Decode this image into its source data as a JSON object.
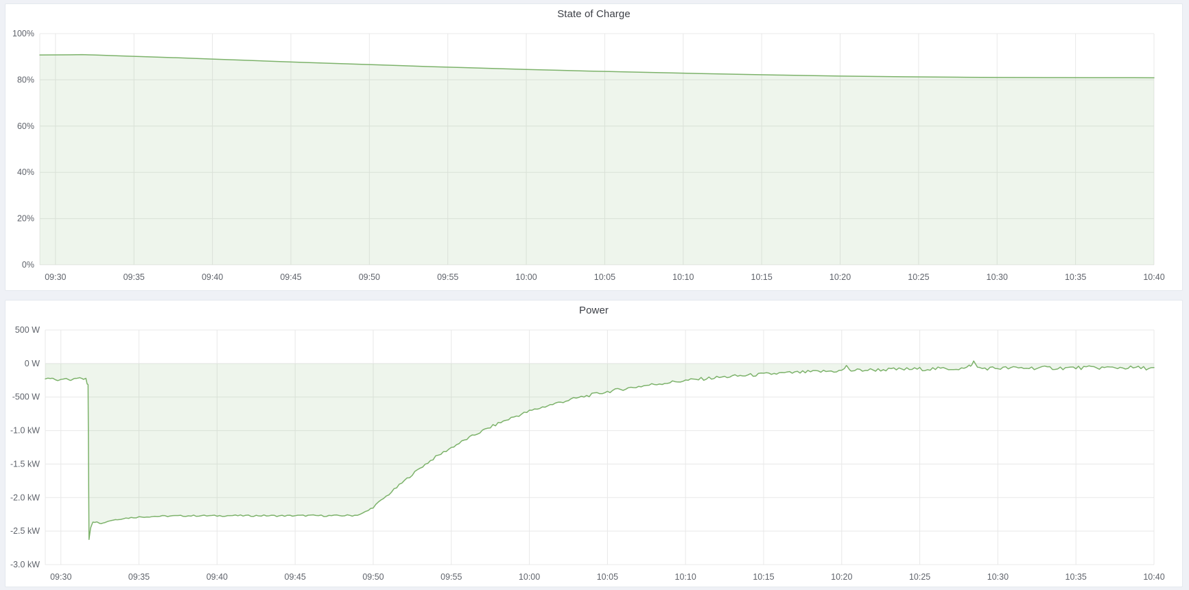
{
  "accent_color": "#7cb26a",
  "fill_color_rgba": "rgba(124,178,106,0.13)",
  "grid_color": "#e8e8e8",
  "chart_data": [
    {
      "type": "area",
      "title": "State of Charge",
      "unit": "%",
      "x_range_minutes": [
        -1,
        70
      ],
      "x_time_span": [
        "09:29",
        "10:40"
      ],
      "xticks": [
        {
          "minute": 0,
          "label": "09:30"
        },
        {
          "minute": 5,
          "label": "09:35"
        },
        {
          "minute": 10,
          "label": "09:40"
        },
        {
          "minute": 15,
          "label": "09:45"
        },
        {
          "minute": 20,
          "label": "09:50"
        },
        {
          "minute": 25,
          "label": "09:55"
        },
        {
          "minute": 30,
          "label": "10:00"
        },
        {
          "minute": 35,
          "label": "10:05"
        },
        {
          "minute": 40,
          "label": "10:10"
        },
        {
          "minute": 45,
          "label": "10:15"
        },
        {
          "minute": 50,
          "label": "10:20"
        },
        {
          "minute": 55,
          "label": "10:25"
        },
        {
          "minute": 60,
          "label": "10:30"
        },
        {
          "minute": 65,
          "label": "10:35"
        },
        {
          "minute": 70,
          "label": "10:40"
        }
      ],
      "yticks": [
        {
          "value": 100,
          "label": "100%"
        },
        {
          "value": 80,
          "label": "80%"
        },
        {
          "value": 60,
          "label": "60%"
        },
        {
          "value": 40,
          "label": "40%"
        },
        {
          "value": 20,
          "label": "20%"
        },
        {
          "value": 0,
          "label": "0%"
        }
      ],
      "ylim": [
        0,
        100
      ],
      "grid": true,
      "legend": "none",
      "series": [
        {
          "name": "State of Charge",
          "color": "#7cb26a",
          "fill_opacity": 0.13,
          "fill_to_zero": true,
          "points_t_min_vs_percent": [
            [
              -1,
              90.75
            ],
            [
              0,
              90.8
            ],
            [
              1,
              90.85
            ],
            [
              1.7,
              90.9
            ],
            [
              2.5,
              90.75
            ],
            [
              4,
              90.4
            ],
            [
              6,
              89.95
            ],
            [
              8,
              89.5
            ],
            [
              10,
              89.0
            ],
            [
              12,
              88.5
            ],
            [
              14,
              88.0
            ],
            [
              16,
              87.5
            ],
            [
              18,
              87.05
            ],
            [
              20,
              86.6
            ],
            [
              22,
              86.15
            ],
            [
              24,
              85.7
            ],
            [
              26,
              85.3
            ],
            [
              28,
              84.9
            ],
            [
              30,
              84.5
            ],
            [
              32,
              84.15
            ],
            [
              34,
              83.8
            ],
            [
              36,
              83.5
            ],
            [
              38,
              83.2
            ],
            [
              40,
              82.9
            ],
            [
              42,
              82.6
            ],
            [
              44,
              82.35
            ],
            [
              46,
              82.1
            ],
            [
              48,
              81.85
            ],
            [
              50,
              81.65
            ],
            [
              52,
              81.5
            ],
            [
              54,
              81.35
            ],
            [
              56,
              81.22
            ],
            [
              58,
              81.12
            ],
            [
              60,
              81.05
            ],
            [
              62,
              81.0
            ],
            [
              64,
              80.97
            ],
            [
              66,
              80.95
            ],
            [
              68,
              80.93
            ],
            [
              70,
              80.9
            ]
          ]
        }
      ]
    },
    {
      "type": "area",
      "title": "Power",
      "unit": "W",
      "x_range_minutes": [
        -1,
        70
      ],
      "x_time_span": [
        "09:29",
        "10:40"
      ],
      "xticks": [
        {
          "minute": 0,
          "label": "09:30"
        },
        {
          "minute": 5,
          "label": "09:35"
        },
        {
          "minute": 10,
          "label": "09:40"
        },
        {
          "minute": 15,
          "label": "09:45"
        },
        {
          "minute": 20,
          "label": "09:50"
        },
        {
          "minute": 25,
          "label": "09:55"
        },
        {
          "minute": 30,
          "label": "10:00"
        },
        {
          "minute": 35,
          "label": "10:05"
        },
        {
          "minute": 40,
          "label": "10:10"
        },
        {
          "minute": 45,
          "label": "10:15"
        },
        {
          "minute": 50,
          "label": "10:20"
        },
        {
          "minute": 55,
          "label": "10:25"
        },
        {
          "minute": 60,
          "label": "10:30"
        },
        {
          "minute": 65,
          "label": "10:35"
        },
        {
          "minute": 70,
          "label": "10:40"
        }
      ],
      "yticks": [
        {
          "value": 500,
          "label": "500 W"
        },
        {
          "value": 0,
          "label": "0 W"
        },
        {
          "value": -500,
          "label": "-500 W"
        },
        {
          "value": -1000,
          "label": "-1.0 kW"
        },
        {
          "value": -1500,
          "label": "-1.5 kW"
        },
        {
          "value": -2000,
          "label": "-2.0 kW"
        },
        {
          "value": -2500,
          "label": "-2.5 kW"
        },
        {
          "value": -3000,
          "label": "-3.0 kW"
        }
      ],
      "ylim": [
        -3000,
        500
      ],
      "grid": true,
      "legend": "none",
      "series": [
        {
          "name": "Power",
          "color": "#7cb26a",
          "fill_opacity": 0.13,
          "fill_to_zero": true,
          "points_t_min_vs_watts": [
            [
              -1,
              -235
            ],
            [
              -0.6,
              -215
            ],
            [
              -0.2,
              -245
            ],
            [
              0.2,
              -220
            ],
            [
              0.6,
              -250
            ],
            [
              0.9,
              -230
            ],
            [
              1.2,
              -205
            ],
            [
              1.45,
              -230
            ],
            [
              1.6,
              -215
            ],
            [
              1.68,
              -300
            ],
            [
              1.74,
              -310
            ],
            [
              1.8,
              -2620
            ],
            [
              1.9,
              -2450
            ],
            [
              2.05,
              -2370
            ],
            [
              2.3,
              -2355
            ],
            [
              2.6,
              -2390
            ],
            [
              2.9,
              -2360
            ],
            [
              3.2,
              -2340
            ],
            [
              3.6,
              -2325
            ],
            [
              4,
              -2310
            ],
            [
              4.5,
              -2300
            ],
            [
              5,
              -2290
            ],
            [
              6,
              -2280
            ],
            [
              7,
              -2275
            ],
            [
              8,
              -2272
            ],
            [
              9,
              -2270
            ],
            [
              10,
              -2272
            ],
            [
              11,
              -2268
            ],
            [
              12,
              -2271
            ],
            [
              13,
              -2269
            ],
            [
              14,
              -2272
            ],
            [
              15,
              -2270
            ],
            [
              16,
              -2268
            ],
            [
              17,
              -2271
            ],
            [
              18,
              -2269
            ],
            [
              18.8,
              -2265
            ],
            [
              19.3,
              -2240
            ],
            [
              19.7,
              -2190
            ],
            [
              20,
              -2140
            ],
            [
              21,
              -1950
            ],
            [
              22,
              -1750
            ],
            [
              23,
              -1560
            ],
            [
              24,
              -1395
            ],
            [
              25,
              -1255
            ],
            [
              26,
              -1125
            ],
            [
              27,
              -1005
            ],
            [
              28,
              -895
            ],
            [
              29,
              -798
            ],
            [
              30,
              -712
            ],
            [
              31,
              -640
            ],
            [
              32,
              -576
            ],
            [
              33,
              -518
            ],
            [
              34,
              -466
            ],
            [
              35,
              -420
            ],
            [
              36,
              -379
            ],
            [
              37,
              -343
            ],
            [
              38,
              -310
            ],
            [
              39,
              -281
            ],
            [
              40,
              -255
            ],
            [
              41,
              -231
            ],
            [
              42,
              -210
            ],
            [
              43,
              -192
            ],
            [
              44,
              -176
            ],
            [
              45,
              -161
            ],
            [
              46,
              -148
            ],
            [
              47,
              -137
            ],
            [
              48,
              -126
            ],
            [
              49,
              -117
            ],
            [
              50,
              -109
            ],
            [
              50.3,
              -45
            ],
            [
              50.6,
              -105
            ],
            [
              51,
              -101
            ],
            [
              52,
              -95
            ],
            [
              53,
              -90
            ],
            [
              54,
              -86
            ],
            [
              55,
              -82
            ],
            [
              56,
              -79
            ],
            [
              57,
              -76
            ],
            [
              58,
              -73
            ],
            [
              58.25,
              -20
            ],
            [
              58.45,
              25
            ],
            [
              58.7,
              -60
            ],
            [
              59,
              -72
            ],
            [
              60,
              -70
            ],
            [
              61,
              -68
            ],
            [
              62,
              -66
            ],
            [
              63,
              -65
            ],
            [
              64,
              -67
            ],
            [
              65,
              -64
            ],
            [
              66,
              -62
            ],
            [
              67,
              -63
            ],
            [
              68,
              -61
            ],
            [
              69,
              -65
            ],
            [
              70,
              -72
            ]
          ],
          "noise_amplitude_w": [
            [
              -1,
              14
            ],
            [
              1.5,
              10
            ],
            [
              1.8,
              6
            ],
            [
              2.5,
              10
            ],
            [
              18,
              12
            ],
            [
              20,
              16
            ],
            [
              30,
              22
            ],
            [
              40,
              24
            ],
            [
              50,
              26
            ],
            [
              60,
              28
            ],
            [
              70,
              28
            ]
          ]
        }
      ]
    }
  ]
}
